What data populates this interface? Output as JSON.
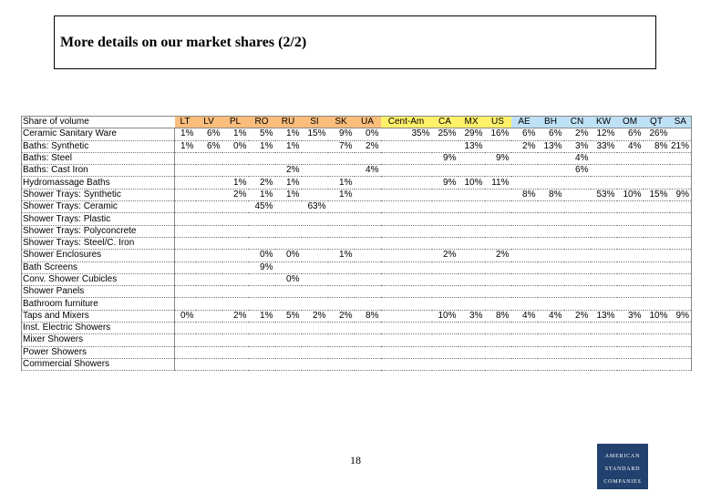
{
  "title": "More details on our market shares (2/2)",
  "page_number": "18",
  "logo": {
    "line1": "American",
    "line2": "Standard",
    "line3": "Companies"
  },
  "table": {
    "corner": "Share of volume",
    "columns": [
      {
        "label": "LT",
        "bg": "#fbbd7c"
      },
      {
        "label": "LV",
        "bg": "#fbbd7c"
      },
      {
        "label": "PL",
        "bg": "#fbbd7c"
      },
      {
        "label": "RO",
        "bg": "#fbbd7c"
      },
      {
        "label": "RU",
        "bg": "#fbbd7c"
      },
      {
        "label": "SI",
        "bg": "#fbbd7c"
      },
      {
        "label": "SK",
        "bg": "#fbbd7c"
      },
      {
        "label": "UA",
        "bg": "#fbbd7c"
      },
      {
        "label": "Cent-Am",
        "bg": "#fff06a"
      },
      {
        "label": "CA",
        "bg": "#fff06a"
      },
      {
        "label": "MX",
        "bg": "#fff06a"
      },
      {
        "label": "US",
        "bg": "#fff06a"
      },
      {
        "label": "AE",
        "bg": "#bfe1f6"
      },
      {
        "label": "BH",
        "bg": "#bfe1f6"
      },
      {
        "label": "CN",
        "bg": "#bfe1f6"
      },
      {
        "label": "KW",
        "bg": "#bfe1f6"
      },
      {
        "label": "OM",
        "bg": "#bfe1f6"
      },
      {
        "label": "QT",
        "bg": "#bfe1f6"
      },
      {
        "label": "SA",
        "bg": "#bfe1f6"
      }
    ],
    "rows": [
      {
        "label": "Ceramic Sanitary Ware",
        "values": [
          "1%",
          "6%",
          "1%",
          "5%",
          "1%",
          "15%",
          "9%",
          "0%",
          "35%",
          "25%",
          "29%",
          "16%",
          "6%",
          "6%",
          "2%",
          "12%",
          "6%",
          "26%",
          ""
        ]
      },
      {
        "label": "Baths: Synthetic",
        "values": [
          "1%",
          "6%",
          "0%",
          "1%",
          "1%",
          "",
          "7%",
          "2%",
          "",
          "",
          "13%",
          "",
          "2%",
          "13%",
          "3%",
          "33%",
          "4%",
          "8%",
          "21%"
        ]
      },
      {
        "label": "Baths: Steel",
        "values": [
          "",
          "",
          "",
          "",
          "",
          "",
          "",
          "",
          "",
          "9%",
          "",
          "9%",
          "",
          "",
          "4%",
          "",
          "",
          "",
          ""
        ]
      },
      {
        "label": "Baths: Cast Iron",
        "values": [
          "",
          "",
          "",
          "",
          "2%",
          "",
          "",
          "4%",
          "",
          "",
          "",
          "",
          "",
          "",
          "6%",
          "",
          "",
          "",
          ""
        ]
      },
      {
        "label": "Hydromassage Baths",
        "values": [
          "",
          "",
          "1%",
          "2%",
          "1%",
          "",
          "1%",
          "",
          "",
          "9%",
          "10%",
          "11%",
          "",
          "",
          "",
          "",
          "",
          "",
          ""
        ]
      },
      {
        "label": "Shower Trays: Synthetic",
        "values": [
          "",
          "",
          "2%",
          "1%",
          "1%",
          "",
          "1%",
          "",
          "",
          "",
          "",
          "",
          "8%",
          "8%",
          "",
          "53%",
          "10%",
          "15%",
          "9%"
        ]
      },
      {
        "label": "Shower Trays: Ceramic",
        "values": [
          "",
          "",
          "",
          "45%",
          "",
          "63%",
          "",
          "",
          "",
          "",
          "",
          "",
          "",
          "",
          "",
          "",
          "",
          "",
          ""
        ]
      },
      {
        "label": "Shower Trays: Plastic",
        "values": [
          "",
          "",
          "",
          "",
          "",
          "",
          "",
          "",
          "",
          "",
          "",
          "",
          "",
          "",
          "",
          "",
          "",
          "",
          ""
        ]
      },
      {
        "label": "Shower Trays: Polyconcrete",
        "values": [
          "",
          "",
          "",
          "",
          "",
          "",
          "",
          "",
          "",
          "",
          "",
          "",
          "",
          "",
          "",
          "",
          "",
          "",
          ""
        ]
      },
      {
        "label": "Shower Trays: Steel/C. Iron",
        "values": [
          "",
          "",
          "",
          "",
          "",
          "",
          "",
          "",
          "",
          "",
          "",
          "",
          "",
          "",
          "",
          "",
          "",
          "",
          ""
        ]
      },
      {
        "label": "Shower Enclosures",
        "values": [
          "",
          "",
          "",
          "0%",
          "0%",
          "",
          "1%",
          "",
          "",
          "2%",
          "",
          "2%",
          "",
          "",
          "",
          "",
          "",
          "",
          ""
        ]
      },
      {
        "label": "Bath Screens",
        "values": [
          "",
          "",
          "",
          "9%",
          "",
          "",
          "",
          "",
          "",
          "",
          "",
          "",
          "",
          "",
          "",
          "",
          "",
          "",
          ""
        ]
      },
      {
        "label": "Conv. Shower Cubicles",
        "values": [
          "",
          "",
          "",
          "",
          "0%",
          "",
          "",
          "",
          "",
          "",
          "",
          "",
          "",
          "",
          "",
          "",
          "",
          "",
          ""
        ]
      },
      {
        "label": "Shower Panels",
        "values": [
          "",
          "",
          "",
          "",
          "",
          "",
          "",
          "",
          "",
          "",
          "",
          "",
          "",
          "",
          "",
          "",
          "",
          "",
          ""
        ]
      },
      {
        "label": "Bathroom furniture",
        "values": [
          "",
          "",
          "",
          "",
          "",
          "",
          "",
          "",
          "",
          "",
          "",
          "",
          "",
          "",
          "",
          "",
          "",
          "",
          ""
        ]
      },
      {
        "label": "Taps and Mixers",
        "values": [
          "0%",
          "",
          "2%",
          "1%",
          "5%",
          "2%",
          "2%",
          "8%",
          "",
          "10%",
          "3%",
          "8%",
          "4%",
          "4%",
          "2%",
          "13%",
          "3%",
          "10%",
          "9%"
        ]
      },
      {
        "label": "Inst. Electric Showers",
        "values": [
          "",
          "",
          "",
          "",
          "",
          "",
          "",
          "",
          "",
          "",
          "",
          "",
          "",
          "",
          "",
          "",
          "",
          "",
          ""
        ]
      },
      {
        "label": "Mixer Showers",
        "values": [
          "",
          "",
          "",
          "",
          "",
          "",
          "",
          "",
          "",
          "",
          "",
          "",
          "",
          "",
          "",
          "",
          "",
          "",
          ""
        ]
      },
      {
        "label": "Power Showers",
        "values": [
          "",
          "",
          "",
          "",
          "",
          "",
          "",
          "",
          "",
          "",
          "",
          "",
          "",
          "",
          "",
          "",
          "",
          "",
          ""
        ]
      },
      {
        "label": "Commercial Showers",
        "values": [
          "",
          "",
          "",
          "",
          "",
          "",
          "",
          "",
          "",
          "",
          "",
          "",
          "",
          "",
          "",
          "",
          "",
          "",
          ""
        ]
      }
    ]
  }
}
